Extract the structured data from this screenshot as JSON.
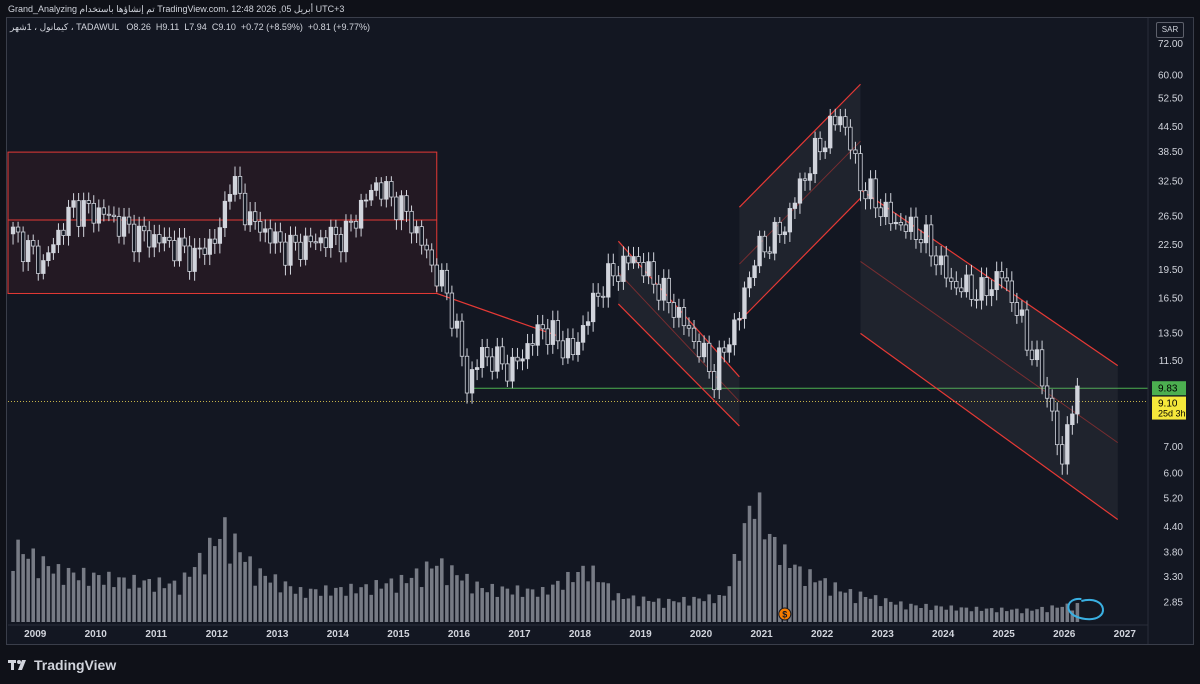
{
  "header": {
    "watermark": "Grand_Analyzing تم إنشاؤها باستخدام TradingView.com، أبريل 05, 2026 12:48 UTC+3",
    "symbol_line": "كيمانول ، 1شهر ، TADAWUL",
    "ohlc": {
      "o_label": "O",
      "o": "8.26",
      "h_label": "H",
      "h": "9.11",
      "l_label": "L",
      "l": "7.94",
      "c_label": "C",
      "c": "9.10",
      "change": "+0.72 (+8.59%)",
      "volume_change": "+0.81 (+9.77%)"
    }
  },
  "currency_label": "SAR",
  "footer": {
    "brand": "TradingView"
  },
  "colors": {
    "background": "#131722",
    "candle": "#d1d4dc",
    "volume": "#8a8d96",
    "channel_red": "#e53935",
    "support_green": "#4caf50",
    "price_line": "#c5b34a",
    "annotation_circle": "#3ab0e2"
  },
  "chart_data": {
    "type": "candlestick",
    "y_scale": "log",
    "ylim": [
      2.5,
      78
    ],
    "xlim": [
      "2008-08",
      "2027-06"
    ],
    "x_ticks": [
      "2009",
      "2010",
      "2011",
      "2012",
      "2013",
      "2014",
      "2015",
      "2016",
      "2017",
      "2018",
      "2019",
      "2020",
      "2021",
      "2022",
      "2023",
      "2024",
      "2025",
      "2026",
      "2027"
    ],
    "y_ticks": [
      "72.00",
      "60.00",
      "52.50",
      "44.50",
      "38.50",
      "32.50",
      "26.50",
      "22.50",
      "19.50",
      "16.50",
      "13.50",
      "11.50",
      "9.83",
      "9.10",
      "7.00",
      "6.00",
      "5.20",
      "4.40",
      "3.80",
      "3.30",
      "2.85"
    ],
    "grid": false,
    "current_price": {
      "value": 9.1,
      "label": "9.10",
      "countdown": "25d 3h"
    },
    "support_level": {
      "value": 9.83,
      "label": "9.83"
    },
    "price_path": [
      [
        "2008-09",
        24
      ],
      [
        "2009-03",
        20
      ],
      [
        "2009-09",
        28
      ],
      [
        "2010-03",
        27
      ],
      [
        "2010-09",
        24
      ],
      [
        "2011-03",
        23
      ],
      [
        "2011-09",
        21
      ],
      [
        "2012-02",
        24
      ],
      [
        "2012-04",
        33
      ],
      [
        "2012-08",
        26
      ],
      [
        "2013-03",
        22
      ],
      [
        "2013-09",
        23
      ],
      [
        "2014-03",
        24
      ],
      [
        "2014-09",
        32
      ],
      [
        "2015-03",
        27
      ],
      [
        "2015-08",
        20
      ],
      [
        "2015-11",
        17
      ],
      [
        "2016-03",
        10
      ],
      [
        "2016-06",
        12
      ],
      [
        "2016-12",
        11
      ],
      [
        "2017-06",
        14
      ],
      [
        "2017-12",
        12
      ],
      [
        "2018-06",
        18
      ],
      [
        "2018-12",
        21
      ],
      [
        "2019-06",
        17
      ],
      [
        "2019-12",
        13
      ],
      [
        "2020-04",
        10.5
      ],
      [
        "2020-09",
        15
      ],
      [
        "2020-12",
        21
      ],
      [
        "2021-06",
        25
      ],
      [
        "2021-12",
        38
      ],
      [
        "2022-05",
        48
      ],
      [
        "2022-09",
        32
      ],
      [
        "2023-03",
        26
      ],
      [
        "2023-09",
        24
      ],
      [
        "2024-03",
        18
      ],
      [
        "2024-09",
        17
      ],
      [
        "2025-01",
        19
      ],
      [
        "2025-06",
        13
      ],
      [
        "2025-10",
        9.5
      ],
      [
        "2026-01",
        6.1
      ],
      [
        "2026-02",
        8.3
      ],
      [
        "2026-04",
        9.1
      ]
    ],
    "volume_path": [
      [
        "2008-09",
        0.45
      ],
      [
        "2009-06",
        0.3
      ],
      [
        "2010-06",
        0.25
      ],
      [
        "2011-06",
        0.22
      ],
      [
        "2012-03",
        0.55
      ],
      [
        "2012-09",
        0.3
      ],
      [
        "2013-06",
        0.18
      ],
      [
        "2014-06",
        0.2
      ],
      [
        "2015-03",
        0.25
      ],
      [
        "2015-09",
        0.35
      ],
      [
        "2016-06",
        0.2
      ],
      [
        "2017-06",
        0.18
      ],
      [
        "2018-03",
        0.32
      ],
      [
        "2018-09",
        0.15
      ],
      [
        "2019-06",
        0.12
      ],
      [
        "2020-06",
        0.15
      ],
      [
        "2020-12",
        0.75
      ],
      [
        "2021-03",
        0.5
      ],
      [
        "2021-09",
        0.3
      ],
      [
        "2022-06",
        0.18
      ],
      [
        "2023-06",
        0.1
      ],
      [
        "2024-06",
        0.08
      ],
      [
        "2025-06",
        0.07
      ],
      [
        "2026-03",
        0.1
      ]
    ],
    "annotations": [
      {
        "type": "range_box",
        "from": "2008-08",
        "to": "2015-09",
        "low": 17,
        "high": 38.5,
        "mid": 26
      },
      {
        "type": "trendline",
        "from": [
          "2015-09",
          17
        ],
        "to": [
          "2017-09",
          13.3
        ]
      },
      {
        "type": "support_line",
        "from": "2016-04",
        "to": "2027-06",
        "value": 9.83
      },
      {
        "type": "channel",
        "from": "2018-09",
        "to": "2020-09",
        "upper": [
          23,
          10.5
        ],
        "lower": [
          16,
          7.9
        ]
      },
      {
        "type": "channel",
        "from": "2020-09",
        "to": "2022-09",
        "upper": [
          28,
          57
        ],
        "lower": [
          14.5,
          29.5
        ]
      },
      {
        "type": "channel",
        "from": "2022-09",
        "to": "2026-12",
        "upper": [
          31,
          11.2
        ],
        "lower": [
          13.5,
          4.6
        ]
      }
    ],
    "event_marker": {
      "date": "2021-06",
      "symbol": "$"
    }
  }
}
